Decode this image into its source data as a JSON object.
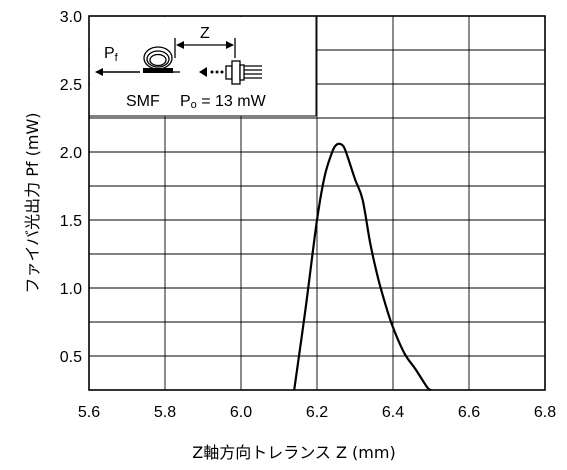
{
  "chart_data": {
    "type": "line",
    "xlabel": "Z軸方向トレランス  Z (mm)",
    "ylabel": "ファイバ光出力  Pf (mW)",
    "xlim": [
      5.6,
      6.8
    ],
    "ylim": [
      0.25,
      3.0
    ],
    "xticks": [
      "5.6",
      "5.8",
      "6.0",
      "6.2",
      "6.4",
      "6.6",
      "6.8"
    ],
    "yticks": [
      "0.5",
      "1.0",
      "1.5",
      "2.0",
      "2.5",
      "3.0"
    ],
    "grid": true,
    "series": [
      {
        "points": [
          [
            6.14,
            0.25
          ],
          [
            6.17,
            0.85
          ],
          [
            6.2,
            1.5
          ],
          [
            6.22,
            1.82
          ],
          [
            6.24,
            2.0
          ],
          [
            6.25,
            2.05
          ],
          [
            6.26,
            2.06
          ],
          [
            6.27,
            2.04
          ],
          [
            6.28,
            1.97
          ],
          [
            6.3,
            1.8
          ],
          [
            6.32,
            1.65
          ],
          [
            6.34,
            1.33
          ],
          [
            6.36,
            1.08
          ],
          [
            6.38,
            0.88
          ],
          [
            6.4,
            0.71
          ],
          [
            6.43,
            0.52
          ],
          [
            6.46,
            0.4
          ],
          [
            6.49,
            0.27
          ],
          [
            6.5,
            0.25
          ]
        ]
      }
    ],
    "inset": {
      "pf_label": "P",
      "pf_sub": "f",
      "z_label": "Z",
      "smf_label": "SMF",
      "po_label": "P",
      "po_sub": "o",
      "po_value": " = 13 mW"
    }
  },
  "colors": {
    "line": "#000000",
    "grid": "#000000"
  }
}
